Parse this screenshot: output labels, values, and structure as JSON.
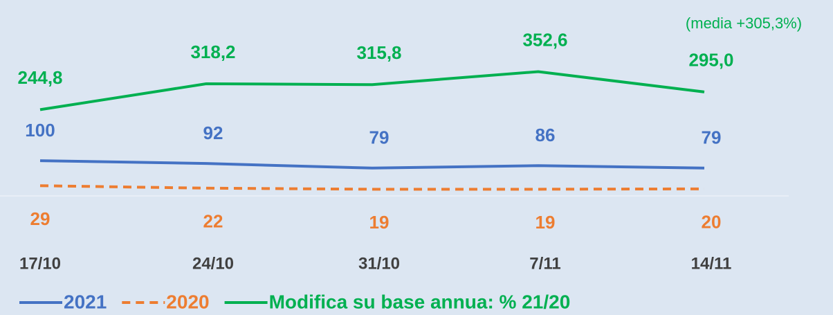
{
  "chart_data": {
    "type": "line",
    "annotation": "(media +305,3%)",
    "categories": [
      "17/10",
      "24/10",
      "31/10",
      "7/11",
      "14/11"
    ],
    "series": [
      {
        "name": "2021",
        "color": "#4472c4",
        "values": [
          100,
          92,
          79,
          86,
          79
        ]
      },
      {
        "name": "2020",
        "color": "#ed7d31",
        "dashed": true,
        "values": [
          29,
          22,
          19,
          19,
          20
        ]
      },
      {
        "name": "Modifica su base annua: % 21/20",
        "color": "#00b050",
        "values": [
          244.8,
          318.2,
          315.8,
          352.6,
          295.0
        ],
        "value_labels": [
          "244,8",
          "318,2",
          "315,8",
          "352,6",
          "295,0"
        ]
      }
    ],
    "ylim": [
      0,
      550
    ],
    "legend": "bottom"
  }
}
